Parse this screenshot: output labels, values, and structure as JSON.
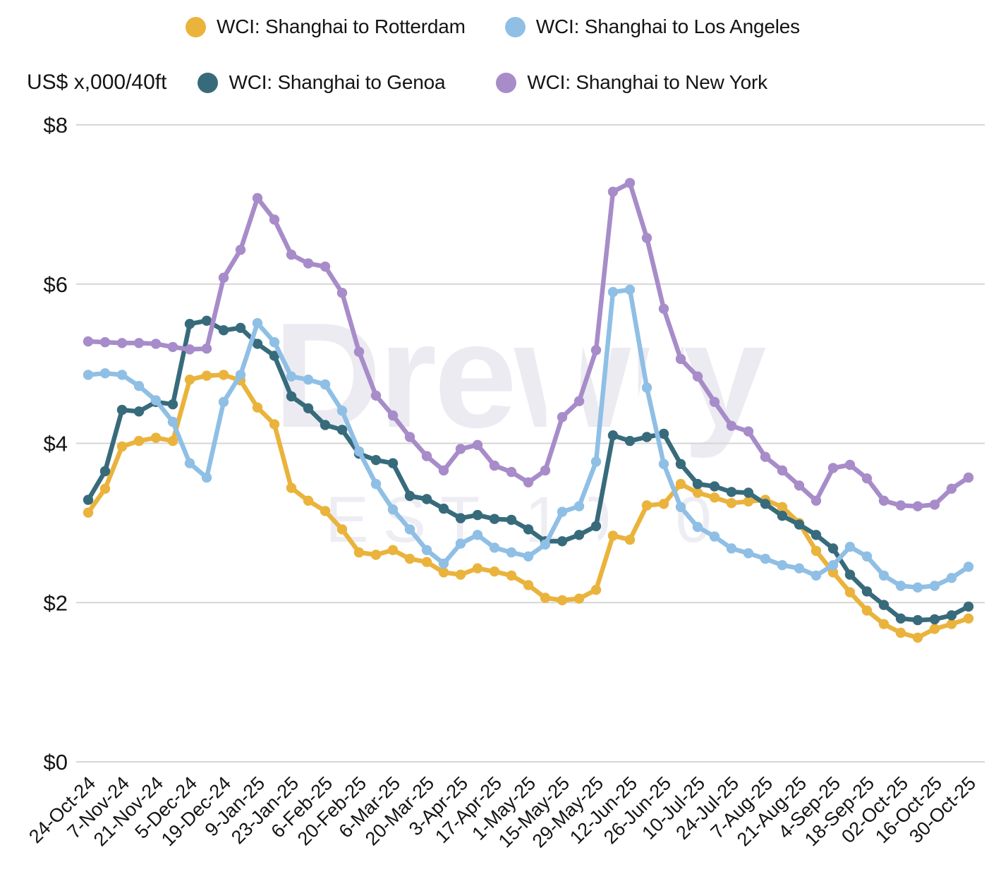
{
  "header": {
    "unit_label": "US$ x,000/40ft"
  },
  "watermark": {
    "line1": "Drewry",
    "line2": "EST 1970"
  },
  "colors": {
    "rotterdam": "#EAB33C",
    "los_angeles": "#8FBFE5",
    "genoa": "#376B7C",
    "new_york": "#A78CC9",
    "gridline": "#D6D6D6",
    "text": "#141414",
    "watermark": "#EBEBF1",
    "background": "#FFFFFF"
  },
  "chart_data": {
    "type": "line",
    "title": "",
    "xlabel": "",
    "ylabel": "US$ x,000/40ft",
    "ylim": [
      0,
      8
    ],
    "yticks": [
      "$0",
      "$2",
      "$4",
      "$6",
      "$8"
    ],
    "ytick_values": [
      0,
      2,
      4,
      6,
      8
    ],
    "grid": "horizontal",
    "legend_position": "top",
    "marker": "circle",
    "x_tick_labels": [
      "24-Oct-24",
      "7-Nov-24",
      "21-Nov-24",
      "5-Dec-24",
      "19-Dec-24",
      "9-Jan-25",
      "23-Jan-25",
      "6-Feb-25",
      "20-Feb-25",
      "6-Mar-25",
      "20-Mar-25",
      "3-Apr-25",
      "17-Apr-25",
      "1-May-25",
      "15-May-25",
      "29-May-25",
      "12-Jun-25",
      "26-Jun-25",
      "10-Jul-25",
      "24-Jul-25",
      "7-Aug-25",
      "21-Aug-25",
      "4-Sep-25",
      "18-Sep-25",
      "02-Oct-25",
      "16-Oct-25",
      "30-Oct-25"
    ],
    "x": [
      "24-Oct-24",
      "31-Oct-24",
      "7-Nov-24",
      "14-Nov-24",
      "21-Nov-24",
      "28-Nov-24",
      "5-Dec-24",
      "12-Dec-24",
      "19-Dec-24",
      "2-Jan-25",
      "9-Jan-25",
      "16-Jan-25",
      "23-Jan-25",
      "30-Jan-25",
      "6-Feb-25",
      "13-Feb-25",
      "20-Feb-25",
      "27-Feb-25",
      "6-Mar-25",
      "13-Mar-25",
      "20-Mar-25",
      "27-Mar-25",
      "3-Apr-25",
      "10-Apr-25",
      "17-Apr-25",
      "24-Apr-25",
      "1-May-25",
      "8-May-25",
      "15-May-25",
      "22-May-25",
      "29-May-25",
      "5-Jun-25",
      "12-Jun-25",
      "19-Jun-25",
      "26-Jun-25",
      "3-Jul-25",
      "10-Jul-25",
      "17-Jul-25",
      "24-Jul-25",
      "31-Jul-25",
      "7-Aug-25",
      "14-Aug-25",
      "21-Aug-25",
      "28-Aug-25",
      "4-Sep-25",
      "11-Sep-25",
      "18-Sep-25",
      "25-Sep-25",
      "02-Oct-25",
      "9-Oct-25",
      "16-Oct-25",
      "23-Oct-25",
      "30-Oct-25"
    ],
    "series": [
      {
        "name": "WCI: Shanghai to Rotterdam",
        "color": "#EAB33C",
        "values": [
          3.13,
          3.43,
          3.96,
          4.03,
          4.07,
          4.03,
          4.8,
          4.85,
          4.86,
          4.79,
          4.45,
          4.24,
          3.44,
          3.28,
          3.15,
          2.92,
          2.63,
          2.6,
          2.66,
          2.55,
          2.51,
          2.38,
          2.35,
          2.43,
          2.39,
          2.34,
          2.22,
          2.06,
          2.03,
          2.05,
          2.16,
          2.84,
          2.79,
          3.22,
          3.24,
          3.49,
          3.38,
          3.32,
          3.25,
          3.27,
          3.29,
          3.2,
          3.0,
          2.65,
          2.38,
          2.13,
          1.9,
          1.73,
          1.62,
          1.56,
          1.67,
          1.73,
          1.8
        ]
      },
      {
        "name": "WCI: Shanghai to Los Angeles",
        "color": "#8FBFE5",
        "values": [
          4.86,
          4.88,
          4.86,
          4.72,
          4.54,
          4.27,
          3.75,
          3.57,
          4.52,
          4.86,
          5.51,
          5.27,
          4.84,
          4.8,
          4.74,
          4.41,
          3.9,
          3.49,
          3.17,
          2.92,
          2.66,
          2.49,
          2.74,
          2.85,
          2.69,
          2.63,
          2.58,
          2.73,
          3.14,
          3.21,
          3.77,
          5.9,
          5.93,
          4.7,
          3.74,
          3.2,
          2.95,
          2.83,
          2.68,
          2.62,
          2.55,
          2.47,
          2.43,
          2.34,
          2.47,
          2.7,
          2.58,
          2.34,
          2.21,
          2.19,
          2.21,
          2.31,
          2.45
        ]
      },
      {
        "name": "WCI: Shanghai to Genoa",
        "color": "#376B7C",
        "values": [
          3.29,
          3.65,
          4.42,
          4.4,
          4.52,
          4.49,
          5.5,
          5.54,
          5.42,
          5.45,
          5.25,
          5.1,
          4.59,
          4.44,
          4.23,
          4.17,
          3.87,
          3.79,
          3.75,
          3.34,
          3.3,
          3.18,
          3.06,
          3.1,
          3.05,
          3.04,
          2.92,
          2.77,
          2.77,
          2.85,
          2.96,
          4.1,
          4.03,
          4.08,
          4.12,
          3.74,
          3.49,
          3.46,
          3.39,
          3.38,
          3.24,
          3.09,
          2.98,
          2.85,
          2.68,
          2.35,
          2.14,
          1.97,
          1.8,
          1.78,
          1.79,
          1.84,
          1.95
        ]
      },
      {
        "name": "WCI: Shanghai to New York",
        "color": "#A78CC9",
        "values": [
          5.28,
          5.27,
          5.26,
          5.26,
          5.25,
          5.21,
          5.18,
          5.19,
          6.08,
          6.43,
          7.08,
          6.81,
          6.37,
          6.26,
          6.22,
          5.89,
          5.15,
          4.6,
          4.35,
          4.08,
          3.84,
          3.66,
          3.93,
          3.98,
          3.72,
          3.64,
          3.51,
          3.66,
          4.33,
          4.53,
          5.17,
          7.16,
          7.27,
          6.58,
          5.69,
          5.06,
          4.84,
          4.52,
          4.22,
          4.15,
          3.83,
          3.66,
          3.47,
          3.28,
          3.69,
          3.73,
          3.56,
          3.28,
          3.22,
          3.21,
          3.23,
          3.43,
          3.57
        ]
      }
    ]
  }
}
